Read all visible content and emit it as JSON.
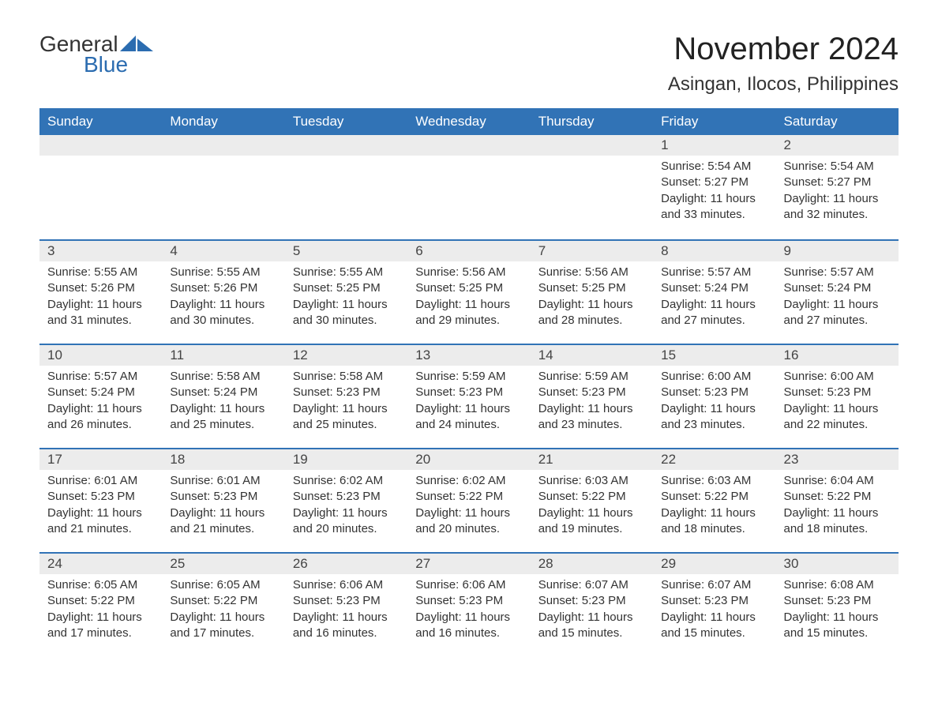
{
  "logo": {
    "text_general": "General",
    "text_blue": "Blue",
    "icon_color": "#2b6cb0"
  },
  "title": "November 2024",
  "location": "Asingan, Ilocos, Philippines",
  "colors": {
    "header_bg": "#3173b6",
    "header_text": "#ffffff",
    "daynum_bg": "#ececec",
    "border": "#3173b6",
    "text": "#333333",
    "background": "#ffffff"
  },
  "typography": {
    "title_size_pt": 30,
    "location_size_pt": 18,
    "header_size_pt": 13,
    "body_size_pt": 11
  },
  "days_of_week": [
    "Sunday",
    "Monday",
    "Tuesday",
    "Wednesday",
    "Thursday",
    "Friday",
    "Saturday"
  ],
  "weeks": [
    [
      null,
      null,
      null,
      null,
      null,
      {
        "n": "1",
        "sunrise": "Sunrise: 5:54 AM",
        "sunset": "Sunset: 5:27 PM",
        "daylight": "Daylight: 11 hours and 33 minutes."
      },
      {
        "n": "2",
        "sunrise": "Sunrise: 5:54 AM",
        "sunset": "Sunset: 5:27 PM",
        "daylight": "Daylight: 11 hours and 32 minutes."
      }
    ],
    [
      {
        "n": "3",
        "sunrise": "Sunrise: 5:55 AM",
        "sunset": "Sunset: 5:26 PM",
        "daylight": "Daylight: 11 hours and 31 minutes."
      },
      {
        "n": "4",
        "sunrise": "Sunrise: 5:55 AM",
        "sunset": "Sunset: 5:26 PM",
        "daylight": "Daylight: 11 hours and 30 minutes."
      },
      {
        "n": "5",
        "sunrise": "Sunrise: 5:55 AM",
        "sunset": "Sunset: 5:25 PM",
        "daylight": "Daylight: 11 hours and 30 minutes."
      },
      {
        "n": "6",
        "sunrise": "Sunrise: 5:56 AM",
        "sunset": "Sunset: 5:25 PM",
        "daylight": "Daylight: 11 hours and 29 minutes."
      },
      {
        "n": "7",
        "sunrise": "Sunrise: 5:56 AM",
        "sunset": "Sunset: 5:25 PM",
        "daylight": "Daylight: 11 hours and 28 minutes."
      },
      {
        "n": "8",
        "sunrise": "Sunrise: 5:57 AM",
        "sunset": "Sunset: 5:24 PM",
        "daylight": "Daylight: 11 hours and 27 minutes."
      },
      {
        "n": "9",
        "sunrise": "Sunrise: 5:57 AM",
        "sunset": "Sunset: 5:24 PM",
        "daylight": "Daylight: 11 hours and 27 minutes."
      }
    ],
    [
      {
        "n": "10",
        "sunrise": "Sunrise: 5:57 AM",
        "sunset": "Sunset: 5:24 PM",
        "daylight": "Daylight: 11 hours and 26 minutes."
      },
      {
        "n": "11",
        "sunrise": "Sunrise: 5:58 AM",
        "sunset": "Sunset: 5:24 PM",
        "daylight": "Daylight: 11 hours and 25 minutes."
      },
      {
        "n": "12",
        "sunrise": "Sunrise: 5:58 AM",
        "sunset": "Sunset: 5:23 PM",
        "daylight": "Daylight: 11 hours and 25 minutes."
      },
      {
        "n": "13",
        "sunrise": "Sunrise: 5:59 AM",
        "sunset": "Sunset: 5:23 PM",
        "daylight": "Daylight: 11 hours and 24 minutes."
      },
      {
        "n": "14",
        "sunrise": "Sunrise: 5:59 AM",
        "sunset": "Sunset: 5:23 PM",
        "daylight": "Daylight: 11 hours and 23 minutes."
      },
      {
        "n": "15",
        "sunrise": "Sunrise: 6:00 AM",
        "sunset": "Sunset: 5:23 PM",
        "daylight": "Daylight: 11 hours and 23 minutes."
      },
      {
        "n": "16",
        "sunrise": "Sunrise: 6:00 AM",
        "sunset": "Sunset: 5:23 PM",
        "daylight": "Daylight: 11 hours and 22 minutes."
      }
    ],
    [
      {
        "n": "17",
        "sunrise": "Sunrise: 6:01 AM",
        "sunset": "Sunset: 5:23 PM",
        "daylight": "Daylight: 11 hours and 21 minutes."
      },
      {
        "n": "18",
        "sunrise": "Sunrise: 6:01 AM",
        "sunset": "Sunset: 5:23 PM",
        "daylight": "Daylight: 11 hours and 21 minutes."
      },
      {
        "n": "19",
        "sunrise": "Sunrise: 6:02 AM",
        "sunset": "Sunset: 5:23 PM",
        "daylight": "Daylight: 11 hours and 20 minutes."
      },
      {
        "n": "20",
        "sunrise": "Sunrise: 6:02 AM",
        "sunset": "Sunset: 5:22 PM",
        "daylight": "Daylight: 11 hours and 20 minutes."
      },
      {
        "n": "21",
        "sunrise": "Sunrise: 6:03 AM",
        "sunset": "Sunset: 5:22 PM",
        "daylight": "Daylight: 11 hours and 19 minutes."
      },
      {
        "n": "22",
        "sunrise": "Sunrise: 6:03 AM",
        "sunset": "Sunset: 5:22 PM",
        "daylight": "Daylight: 11 hours and 18 minutes."
      },
      {
        "n": "23",
        "sunrise": "Sunrise: 6:04 AM",
        "sunset": "Sunset: 5:22 PM",
        "daylight": "Daylight: 11 hours and 18 minutes."
      }
    ],
    [
      {
        "n": "24",
        "sunrise": "Sunrise: 6:05 AM",
        "sunset": "Sunset: 5:22 PM",
        "daylight": "Daylight: 11 hours and 17 minutes."
      },
      {
        "n": "25",
        "sunrise": "Sunrise: 6:05 AM",
        "sunset": "Sunset: 5:22 PM",
        "daylight": "Daylight: 11 hours and 17 minutes."
      },
      {
        "n": "26",
        "sunrise": "Sunrise: 6:06 AM",
        "sunset": "Sunset: 5:23 PM",
        "daylight": "Daylight: 11 hours and 16 minutes."
      },
      {
        "n": "27",
        "sunrise": "Sunrise: 6:06 AM",
        "sunset": "Sunset: 5:23 PM",
        "daylight": "Daylight: 11 hours and 16 minutes."
      },
      {
        "n": "28",
        "sunrise": "Sunrise: 6:07 AM",
        "sunset": "Sunset: 5:23 PM",
        "daylight": "Daylight: 11 hours and 15 minutes."
      },
      {
        "n": "29",
        "sunrise": "Sunrise: 6:07 AM",
        "sunset": "Sunset: 5:23 PM",
        "daylight": "Daylight: 11 hours and 15 minutes."
      },
      {
        "n": "30",
        "sunrise": "Sunrise: 6:08 AM",
        "sunset": "Sunset: 5:23 PM",
        "daylight": "Daylight: 11 hours and 15 minutes."
      }
    ]
  ]
}
